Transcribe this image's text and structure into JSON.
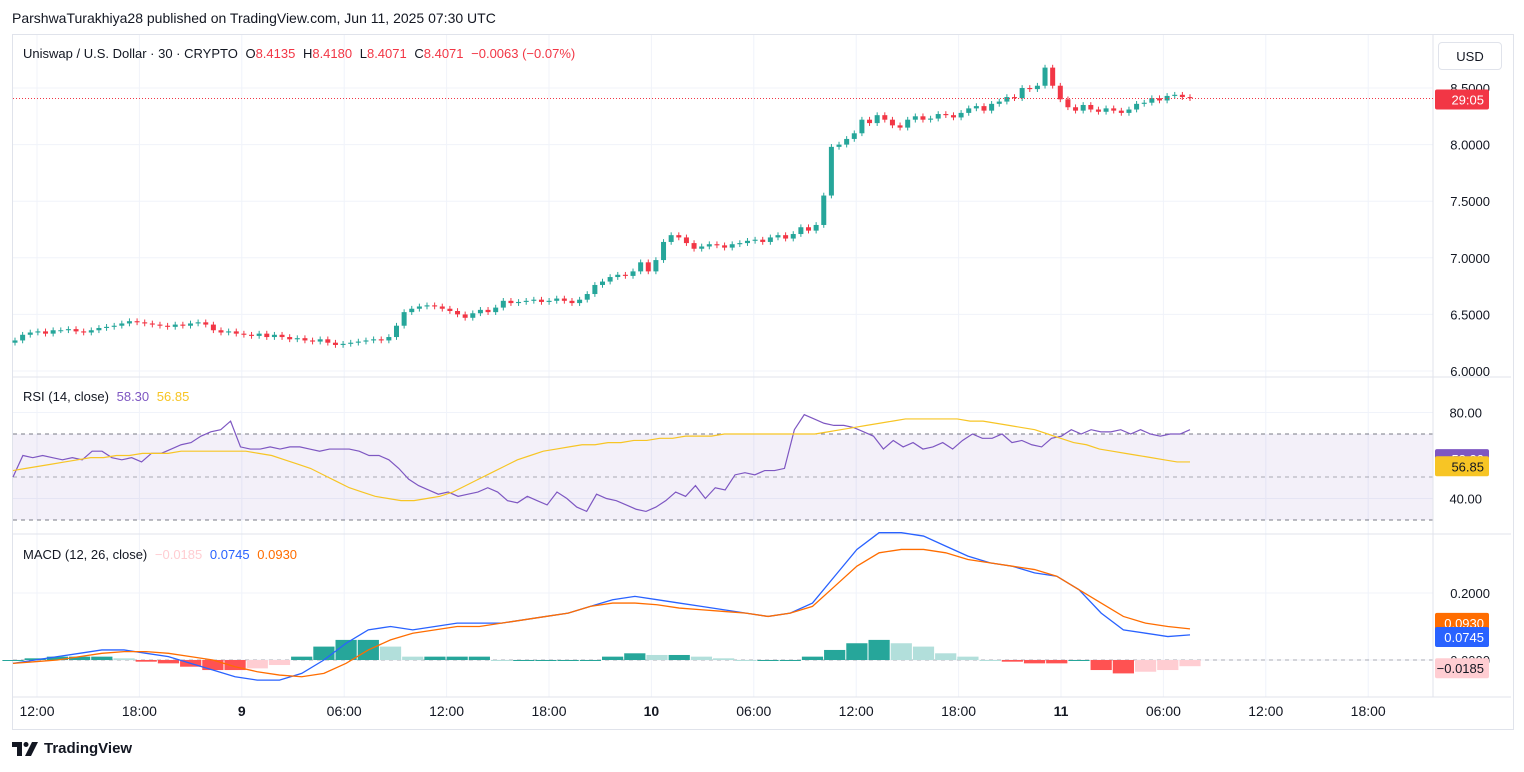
{
  "header": {
    "attribution": "ParshwaTurakhiya28 published on TradingView.com, Jun 11, 2025 07:30 UTC"
  },
  "price_legend": {
    "symbol": "Uniswap / U.S. Dollar · 30 · CRYPTO",
    "o_label": "O",
    "o_value": "8.4135",
    "h_label": "H",
    "h_value": "8.4180",
    "l_label": "L",
    "l_value": "8.4071",
    "c_label": "C",
    "c_value": "8.4071",
    "change": "−0.0063 (−0.07%)"
  },
  "currency_button": "USD",
  "rsi_legend": {
    "label": "RSI (14, close)",
    "rsi": "58.30",
    "ma": "56.85"
  },
  "macd_legend": {
    "label": "MACD (12, 26, close)",
    "hist": "−0.0185",
    "macd": "0.0745",
    "signal": "0.0930"
  },
  "badges": {
    "countdown": "29:05",
    "rsi": "58.30",
    "rsi_ma": "56.85",
    "signal": "0.0930",
    "macd": "0.0745",
    "hist": "−0.0185"
  },
  "footer": {
    "brand": "TradingView"
  },
  "colors": {
    "up": "#26a69a",
    "down": "#f23645",
    "rsi": "#7e57c2",
    "rsi_ma": "#f7c525",
    "macd": "#2962ff",
    "signal": "#ff6d00",
    "hist_pos_strong": "#26a69a",
    "hist_pos_weak": "#b2dfdb",
    "hist_neg_strong": "#ff5252",
    "hist_neg_weak": "#ffcdd2"
  },
  "chart_data": [
    {
      "type": "candlestick",
      "title": "Uniswap / U.S. Dollar · 30 · CRYPTO",
      "x_ticks": [
        "12:00",
        "18:00",
        "9",
        "06:00",
        "12:00",
        "18:00",
        "10",
        "06:00",
        "12:00",
        "18:00",
        "11",
        "06:00",
        "12:00",
        "18:00"
      ],
      "y_ticks": [
        "6.0000",
        "6.5000",
        "7.0000",
        "7.5000",
        "8.0000",
        "8.5000"
      ],
      "ylim": [
        5.98,
        8.82
      ],
      "last_price": 8.4071,
      "grid": true,
      "close": [
        6.27,
        6.32,
        6.34,
        6.35,
        6.33,
        6.36,
        6.36,
        6.37,
        6.35,
        6.34,
        6.36,
        6.38,
        6.39,
        6.4,
        6.42,
        6.44,
        6.43,
        6.42,
        6.41,
        6.4,
        6.39,
        6.41,
        6.4,
        6.42,
        6.43,
        6.41,
        6.36,
        6.34,
        6.35,
        6.33,
        6.32,
        6.31,
        6.33,
        6.3,
        6.32,
        6.3,
        6.28,
        6.29,
        6.27,
        6.26,
        6.28,
        6.25,
        6.23,
        6.24,
        6.25,
        6.26,
        6.27,
        6.28,
        6.27,
        6.3,
        6.4,
        6.52,
        6.55,
        6.57,
        6.58,
        6.57,
        6.55,
        6.53,
        6.5,
        6.47,
        6.51,
        6.54,
        6.52,
        6.56,
        6.62,
        6.6,
        6.61,
        6.62,
        6.63,
        6.61,
        6.62,
        6.64,
        6.62,
        6.6,
        6.63,
        6.68,
        6.76,
        6.79,
        6.83,
        6.85,
        6.84,
        6.88,
        6.96,
        6.88,
        6.98,
        7.14,
        7.2,
        7.18,
        7.13,
        7.08,
        7.1,
        7.12,
        7.11,
        7.09,
        7.12,
        7.13,
        7.15,
        7.16,
        7.14,
        7.18,
        7.2,
        7.17,
        7.21,
        7.27,
        7.24,
        7.29,
        7.55,
        7.98,
        8.0,
        8.05,
        8.1,
        8.22,
        8.19,
        8.26,
        8.22,
        8.17,
        8.15,
        8.22,
        8.25,
        8.22,
        8.23,
        8.27,
        8.26,
        8.24,
        8.28,
        8.32,
        8.34,
        8.3,
        8.36,
        8.38,
        8.42,
        8.41,
        8.5,
        8.49,
        8.52,
        8.68,
        8.52,
        8.4,
        8.33,
        8.3,
        8.35,
        8.31,
        8.29,
        8.32,
        8.3,
        8.28,
        8.31,
        8.36,
        8.37,
        8.41,
        8.39,
        8.43,
        8.44,
        8.42,
        8.41
      ]
    },
    {
      "type": "line",
      "title": "RSI (14, close)",
      "y_ticks": [
        "40.00",
        "80.00"
      ],
      "ylim": [
        30,
        90
      ],
      "bands": {
        "upper": 70,
        "middle": 50,
        "lower": 30
      },
      "series": [
        {
          "name": "RSI",
          "values": [
            50,
            60,
            59,
            60,
            59,
            58,
            59,
            58,
            62,
            62,
            59,
            58,
            59,
            57,
            61,
            61,
            63,
            65,
            66,
            69,
            71,
            72,
            76,
            64,
            63,
            63,
            64,
            63,
            64,
            64,
            63,
            62,
            63,
            63,
            63,
            62,
            60,
            60,
            58,
            54,
            49,
            46,
            44,
            42,
            43,
            41,
            42,
            43,
            45,
            43,
            39,
            38,
            41,
            39,
            37,
            43,
            40,
            36,
            34,
            42,
            40,
            39,
            37,
            35,
            34,
            36,
            39,
            43,
            41,
            46,
            40,
            45,
            44,
            51,
            52,
            51,
            53,
            53,
            54,
            72,
            79,
            77,
            75,
            74,
            74,
            73,
            71,
            69,
            63,
            67,
            64,
            66,
            63,
            64,
            66,
            63,
            67,
            70,
            68,
            68,
            70,
            66,
            67,
            65,
            64,
            68,
            69,
            72,
            70,
            72,
            71,
            71,
            72,
            70,
            72,
            70,
            69,
            70,
            70,
            72,
            71,
            70,
            68,
            67,
            70,
            68,
            70,
            72,
            71,
            73,
            71,
            73,
            77,
            73,
            70,
            73,
            71,
            72,
            71,
            68,
            70,
            68,
            69,
            71,
            70,
            73,
            71,
            71,
            70,
            69,
            73,
            70,
            71,
            69,
            72,
            72,
            70,
            69,
            72,
            70,
            70,
            71,
            72,
            71,
            70,
            71,
            70,
            72,
            70,
            71,
            70,
            71,
            72,
            71,
            70,
            70,
            71,
            72,
            70,
            70,
            71,
            71,
            72,
            71,
            70,
            72,
            71,
            70,
            71,
            70,
            70,
            71,
            72,
            71,
            70,
            71,
            70,
            71,
            70,
            72,
            71,
            71,
            72,
            70,
            71,
            71,
            71,
            72,
            70,
            71,
            70,
            71,
            72,
            71,
            70,
            71,
            70,
            72,
            70,
            71,
            70,
            71,
            72,
            71,
            70,
            71,
            70,
            72,
            70,
            71,
            70,
            71,
            72,
            71,
            70,
            71,
            70,
            72,
            70,
            71,
            70,
            71,
            72,
            71,
            70,
            71,
            70,
            72,
            70,
            71,
            70,
            71,
            72,
            71,
            70,
            71,
            70,
            72,
            70,
            71,
            70,
            71,
            72,
            71,
            70,
            71,
            70,
            72,
            70,
            71,
            70,
            71,
            72,
            71,
            70,
            71,
            70,
            72,
            70,
            71,
            70,
            71,
            72,
            71,
            70,
            71,
            70,
            72,
            70,
            71,
            70,
            71,
            72,
            71,
            70
          ]
        },
        {
          "name": "RSI MA",
          "values": [
            53,
            54,
            55,
            56,
            57,
            58,
            59,
            59,
            60,
            60,
            61,
            61,
            61,
            62,
            62,
            62,
            62,
            62,
            62,
            61,
            60,
            58,
            56,
            54,
            51,
            48,
            45,
            43,
            41,
            40,
            39,
            39,
            40,
            41,
            43,
            46,
            49,
            52,
            55,
            58,
            60,
            62,
            63,
            64,
            65,
            65,
            66,
            66,
            67,
            67,
            68,
            68,
            69,
            69,
            69,
            70,
            70,
            70,
            70,
            70,
            70,
            70,
            70,
            71,
            72,
            73,
            74,
            75,
            76,
            77,
            77,
            77,
            77,
            77,
            76,
            76,
            75,
            74,
            73,
            72,
            70,
            68,
            66,
            65,
            63,
            62,
            61,
            60,
            59,
            58,
            57,
            57
          ]
        }
      ]
    },
    {
      "type": "line",
      "title": "MACD (12, 26, close)",
      "y_ticks": [
        "0.2000",
        "0.0000"
      ],
      "ylim": [
        -0.06,
        0.42
      ],
      "series": [
        {
          "name": "MACD",
          "values": [
            -0.01,
            0.0,
            0.01,
            0.02,
            0.03,
            0.03,
            0.02,
            0.01,
            -0.01,
            -0.03,
            -0.05,
            -0.06,
            -0.06,
            -0.04,
            0.0,
            0.05,
            0.09,
            0.1,
            0.09,
            0.1,
            0.11,
            0.11,
            0.11,
            0.12,
            0.13,
            0.14,
            0.16,
            0.18,
            0.19,
            0.18,
            0.17,
            0.16,
            0.15,
            0.14,
            0.13,
            0.14,
            0.17,
            0.25,
            0.33,
            0.38,
            0.38,
            0.37,
            0.34,
            0.31,
            0.29,
            0.28,
            0.26,
            0.25,
            0.21,
            0.14,
            0.09,
            0.08,
            0.07,
            0.075
          ]
        },
        {
          "name": "Signal",
          "values": [
            -0.01,
            -0.005,
            0.0,
            0.01,
            0.02,
            0.025,
            0.025,
            0.02,
            0.01,
            0.0,
            -0.02,
            -0.035,
            -0.045,
            -0.05,
            -0.04,
            -0.01,
            0.03,
            0.06,
            0.08,
            0.09,
            0.1,
            0.1,
            0.11,
            0.12,
            0.13,
            0.14,
            0.16,
            0.17,
            0.17,
            0.165,
            0.155,
            0.15,
            0.145,
            0.14,
            0.13,
            0.14,
            0.16,
            0.22,
            0.28,
            0.32,
            0.33,
            0.33,
            0.32,
            0.3,
            0.29,
            0.28,
            0.27,
            0.25,
            0.21,
            0.17,
            0.13,
            0.11,
            0.1,
            0.093
          ]
        },
        {
          "name": "Histogram",
          "values": [
            0.0,
            0.005,
            0.01,
            0.01,
            0.01,
            0.005,
            -0.005,
            -0.01,
            -0.02,
            -0.03,
            -0.03,
            -0.025,
            -0.015,
            0.01,
            0.04,
            0.06,
            0.06,
            0.04,
            0.01,
            0.01,
            0.01,
            0.01,
            0.0,
            0.0,
            0.0,
            0.0,
            0.0,
            0.01,
            0.02,
            0.015,
            0.015,
            0.01,
            0.005,
            0.0,
            0.0,
            0.0,
            0.01,
            0.03,
            0.05,
            0.06,
            0.05,
            0.04,
            0.02,
            0.01,
            0.0,
            -0.005,
            -0.01,
            -0.01,
            -0.0,
            -0.03,
            -0.04,
            -0.035,
            -0.03,
            -0.0185
          ]
        }
      ]
    }
  ]
}
